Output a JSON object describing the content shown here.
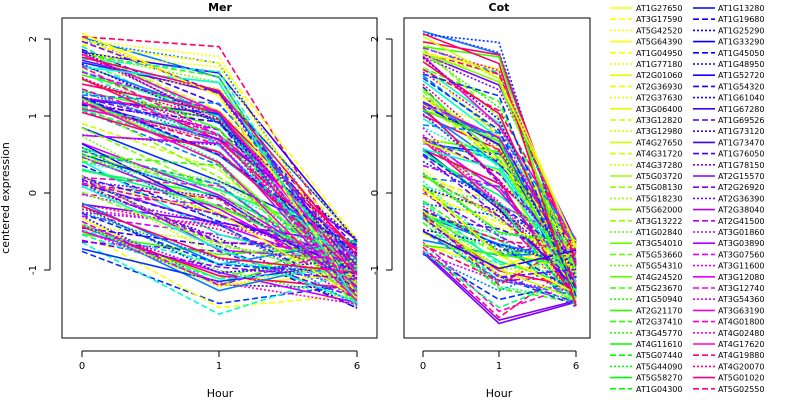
{
  "chart_data": [
    {
      "type": "line",
      "title": "Mer",
      "xlabel": "Hour",
      "ylabel": "centered expression",
      "x": [
        0,
        1,
        6
      ],
      "xticks": [
        "0",
        "1",
        "6"
      ],
      "yticks": [
        "-1",
        "0",
        "1",
        "2"
      ],
      "ylim": [
        -1.75,
        2.25
      ],
      "grid": false,
      "note_series_count": 0
    },
    {
      "type": "line",
      "title": "Cot",
      "xlabel": "Hour",
      "ylabel": "",
      "x": [
        0,
        1,
        6
      ],
      "xticks": [
        "0",
        "1",
        "6"
      ],
      "yticks": [
        "-1",
        "0",
        "1",
        "2"
      ],
      "ylim": [
        -1.75,
        2.25
      ],
      "grid": false
    }
  ],
  "legend": {
    "placement": "right",
    "col1": [
      "AT1G27650",
      "AT3G17590",
      "AT5G42520",
      "AT5G64390",
      "AT1G04950",
      "AT1G77180",
      "AT2G01060",
      "AT2G36930",
      "AT2G37630",
      "AT3G06400",
      "AT3G12820",
      "AT3G12980",
      "AT4G27650",
      "AT4G31720",
      "AT4G37280",
      "AT5G03720",
      "AT5G08130",
      "AT5G18230",
      "AT5G62000",
      "AT3G13222",
      "AT1G02840",
      "AT3G54010",
      "AT5G53660",
      "AT5G54310",
      "AT4G24520",
      "AT5G23670",
      "AT1G50940",
      "AT2G21170",
      "AT2G37410",
      "AT3G45770",
      "AT4G11610",
      "AT5G07440",
      "AT5G44090",
      "AT5G58270",
      "AT1G04300"
    ],
    "col2": [
      "AT1G13280",
      "AT1G19680",
      "AT1G25290",
      "AT1G33290",
      "AT1G45050",
      "AT1G48950",
      "AT1G52720",
      "AT1G54320",
      "AT1G61040",
      "AT1G67280",
      "AT1G69526",
      "AT1G73120",
      "AT1G73470",
      "AT1G76050",
      "AT1G78150",
      "AT2G15570",
      "AT2G26920",
      "AT2G36390",
      "AT2G38040",
      "AT2G41500",
      "AT3G01860",
      "AT3G03890",
      "AT3G07560",
      "AT3G11600",
      "AT3G12080",
      "AT3G12740",
      "AT3G54360",
      "AT3G63190",
      "AT4G01800",
      "AT4G02480",
      "AT4G17620",
      "AT4G19880",
      "AT4G20070",
      "AT5G01020",
      "AT5G02550"
    ],
    "colors": [
      "#ffff00",
      "#ccff00",
      "#80ff00",
      "#33ff00",
      "#00ff66",
      "#00ffcc",
      "#0080ff",
      "#0033ff",
      "#3300ff",
      "#8000ff",
      "#cc00ff",
      "#ff00cc",
      "#ff0066"
    ]
  }
}
